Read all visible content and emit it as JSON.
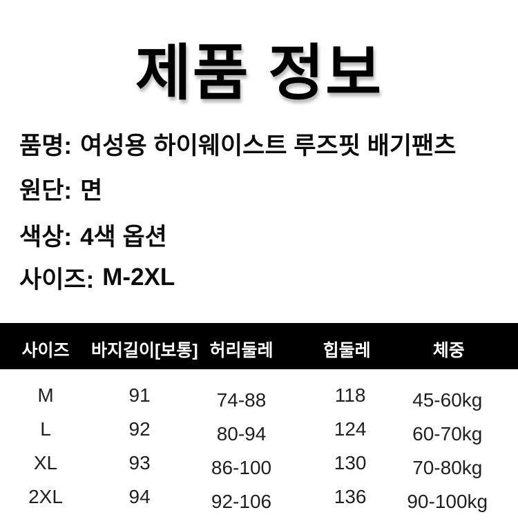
{
  "page": {
    "title": "제품 정보"
  },
  "info": {
    "lines": [
      {
        "label": "품명:",
        "value": "여성용 하이웨이스트 루즈핏 배기팬츠"
      },
      {
        "label": "원단:",
        "value": "면"
      },
      {
        "label": "색상:",
        "value": "4색 옵션"
      },
      {
        "label": "사이즈:",
        "value": "M-2XL"
      }
    ]
  },
  "size_table": {
    "headers": [
      "사이즈",
      "바지길이[보통]",
      "허리둘레",
      "힙둘레",
      "체중"
    ],
    "rows": [
      [
        "M",
        "91",
        "74-88",
        "118",
        "45-60kg"
      ],
      [
        "L",
        "92",
        "80-94",
        "124",
        "60-70kg"
      ],
      [
        "XL",
        "93",
        "86-100",
        "130",
        "70-80kg"
      ],
      [
        "2XL",
        "94",
        "92-106",
        "136",
        "90-100kg"
      ]
    ]
  },
  "colors": {
    "header_bar": "#000000",
    "title_text": "#000000",
    "body_text": "#1f1f1f",
    "header_text": "#ffffff",
    "background": "#ffffff"
  }
}
